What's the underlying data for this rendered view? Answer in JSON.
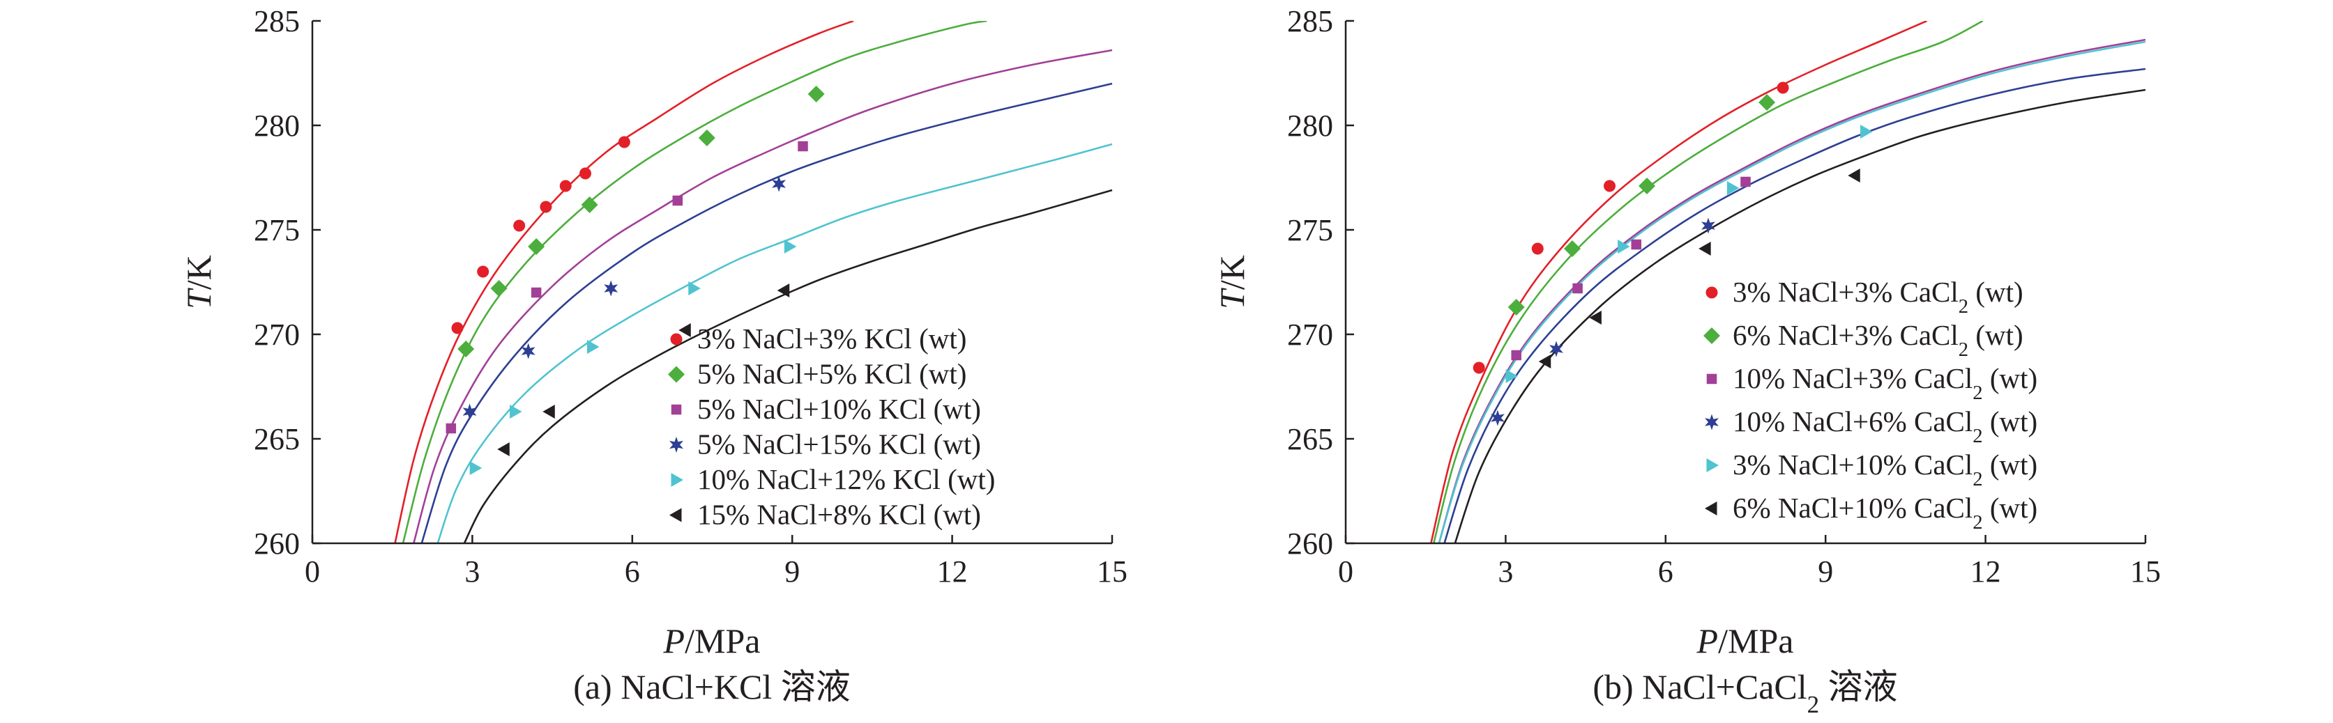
{
  "colors": {
    "red": "#e32028",
    "green": "#4cae3c",
    "purple": "#a23f97",
    "navy": "#2d3f93",
    "cyan": "#4fc3d0",
    "black": "#231f20"
  },
  "chart_data": [
    {
      "type": "scatter",
      "caption": "(a) NaCl+KCl 溶液",
      "xlabel": {
        "italic": "P",
        "rest": "/MPa"
      },
      "ylabel": {
        "italic": "T",
        "rest": "/K"
      },
      "xlim": [
        0,
        15
      ],
      "ylim": [
        260,
        285
      ],
      "xticks": [
        "0",
        "3",
        "6",
        "9",
        "12",
        "15"
      ],
      "yticks": [
        "260",
        "265",
        "270",
        "275",
        "280",
        "285"
      ],
      "legend_position": "bottom-right",
      "series": [
        {
          "name": "3% NaCl+3% KCl (wt)",
          "color_key": "red",
          "marker": "circle",
          "points": [
            [
              2.72,
              270.3
            ],
            [
              3.2,
              273.0
            ],
            [
              3.88,
              275.2
            ],
            [
              4.38,
              276.1
            ],
            [
              4.75,
              277.1
            ],
            [
              5.12,
              277.7
            ],
            [
              5.85,
              279.2
            ]
          ],
          "curve": [
            [
              1.55,
              260
            ],
            [
              1.9,
              264
            ],
            [
              2.3,
              267.2
            ],
            [
              2.8,
              270.2
            ],
            [
              3.5,
              273.2
            ],
            [
              4.5,
              276.3
            ],
            [
              5.5,
              278.7
            ],
            [
              6.5,
              280.4
            ],
            [
              7.5,
              282.0
            ],
            [
              8.5,
              283.3
            ],
            [
              9.5,
              284.4
            ],
            [
              10.15,
              285
            ]
          ]
        },
        {
          "name": "5% NaCl+5% KCl (wt)",
          "color_key": "green",
          "marker": "diamond",
          "points": [
            [
              2.88,
              269.3
            ],
            [
              3.5,
              272.2
            ],
            [
              4.2,
              274.2
            ],
            [
              5.2,
              276.2
            ],
            [
              7.4,
              279.4
            ],
            [
              9.45,
              281.5
            ]
          ],
          "curve": [
            [
              1.7,
              260
            ],
            [
              2.1,
              264
            ],
            [
              2.6,
              267.6
            ],
            [
              3.2,
              270.7
            ],
            [
              4.0,
              273.4
            ],
            [
              5.0,
              275.9
            ],
            [
              6.0,
              277.9
            ],
            [
              7.0,
              279.5
            ],
            [
              8.0,
              280.9
            ],
            [
              9.0,
              282.1
            ],
            [
              10.0,
              283.2
            ],
            [
              11.0,
              284.0
            ],
            [
              12.2,
              284.8
            ],
            [
              12.65,
              285
            ]
          ]
        },
        {
          "name": "5% NaCl+10% KCl (wt)",
          "color_key": "purple",
          "marker": "square",
          "points": [
            [
              2.6,
              265.5
            ],
            [
              4.2,
              272.0
            ],
            [
              6.85,
              276.4
            ],
            [
              9.2,
              279.0
            ]
          ],
          "curve": [
            [
              1.9,
              260
            ],
            [
              2.3,
              263.7
            ],
            [
              2.8,
              266.6
            ],
            [
              3.5,
              269.5
            ],
            [
              4.5,
              272.3
            ],
            [
              5.5,
              274.4
            ],
            [
              6.5,
              276.0
            ],
            [
              7.5,
              277.5
            ],
            [
              8.5,
              278.7
            ],
            [
              9.5,
              279.8
            ],
            [
              10.5,
              280.8
            ],
            [
              12.0,
              282.0
            ],
            [
              13.5,
              282.9
            ],
            [
              15.0,
              283.6
            ]
          ]
        },
        {
          "name": "5% NaCl+15% KCl (wt)",
          "color_key": "navy",
          "marker": "star",
          "points": [
            [
              2.95,
              266.3
            ],
            [
              4.05,
              269.2
            ],
            [
              5.6,
              272.2
            ],
            [
              8.75,
              277.2
            ]
          ],
          "curve": [
            [
              2.05,
              260
            ],
            [
              2.5,
              263.7
            ],
            [
              3.0,
              266.2
            ],
            [
              3.8,
              269.0
            ],
            [
              4.8,
              271.6
            ],
            [
              6.0,
              273.9
            ],
            [
              7.0,
              275.4
            ],
            [
              8.0,
              276.7
            ],
            [
              9.0,
              277.8
            ],
            [
              10.0,
              278.7
            ],
            [
              11.0,
              279.5
            ],
            [
              12.5,
              280.5
            ],
            [
              14.0,
              281.4
            ],
            [
              15.0,
              282.0
            ]
          ]
        },
        {
          "name": "10% NaCl+12% KCl (wt)",
          "color_key": "cyan",
          "marker": "triangle-right",
          "points": [
            [
              3.05,
              263.6
            ],
            [
              3.8,
              266.3
            ],
            [
              5.25,
              269.4
            ],
            [
              7.15,
              272.2
            ],
            [
              8.95,
              274.2
            ]
          ],
          "curve": [
            [
              2.35,
              260
            ],
            [
              2.7,
              262.6
            ],
            [
              3.2,
              264.8
            ],
            [
              4.0,
              267.2
            ],
            [
              5.0,
              269.3
            ],
            [
              6.0,
              270.9
            ],
            [
              7.0,
              272.3
            ],
            [
              8.0,
              273.6
            ],
            [
              9.0,
              274.6
            ],
            [
              10.0,
              275.6
            ],
            [
              11.0,
              276.4
            ],
            [
              12.5,
              277.4
            ],
            [
              14.0,
              278.4
            ],
            [
              15.0,
              279.1
            ]
          ]
        },
        {
          "name": "15% NaCl+8% KCl (wt)",
          "color_key": "black",
          "marker": "triangle-left",
          "points": [
            [
              3.6,
              264.5
            ],
            [
              4.45,
              266.3
            ],
            [
              7.0,
              270.2
            ],
            [
              8.85,
              272.1
            ]
          ],
          "curve": [
            [
              2.85,
              260
            ],
            [
              3.2,
              261.8
            ],
            [
              3.8,
              263.8
            ],
            [
              4.5,
              265.6
            ],
            [
              5.5,
              267.5
            ],
            [
              6.5,
              269.0
            ],
            [
              7.5,
              270.3
            ],
            [
              8.5,
              271.5
            ],
            [
              9.5,
              272.6
            ],
            [
              10.5,
              273.5
            ],
            [
              11.5,
              274.3
            ],
            [
              12.5,
              275.1
            ],
            [
              13.5,
              275.8
            ],
            [
              15.0,
              276.9
            ]
          ]
        }
      ]
    },
    {
      "type": "scatter",
      "caption": "(b) NaCl+CaCl2 溶液",
      "xlabel": {
        "italic": "P",
        "rest": "/MPa"
      },
      "ylabel": {
        "italic": "T",
        "rest": "/K"
      },
      "xlim": [
        0,
        15
      ],
      "ylim": [
        260,
        285
      ],
      "xticks": [
        "0",
        "3",
        "6",
        "9",
        "12",
        "15"
      ],
      "yticks": [
        "260",
        "265",
        "270",
        "275",
        "280",
        "285"
      ],
      "legend_position": "middle-right",
      "series": [
        {
          "name": "3% NaCl+3% CaCl2 (wt)",
          "color_key": "red",
          "marker": "circle",
          "points": [
            [
              2.5,
              268.4
            ],
            [
              3.6,
              274.1
            ],
            [
              4.95,
              277.1
            ],
            [
              8.2,
              281.8
            ]
          ],
          "curve": [
            [
              1.6,
              260
            ],
            [
              2.0,
              264.3
            ],
            [
              2.5,
              267.6
            ],
            [
              3.2,
              271.2
            ],
            [
              4.0,
              274.0
            ],
            [
              5.0,
              276.6
            ],
            [
              6.0,
              278.6
            ],
            [
              7.0,
              280.3
            ],
            [
              8.0,
              281.7
            ],
            [
              9.0,
              282.9
            ],
            [
              10.0,
              284.0
            ],
            [
              10.9,
              285
            ]
          ]
        },
        {
          "name": "6% NaCl+3% CaCl2 (wt)",
          "color_key": "green",
          "marker": "diamond",
          "points": [
            [
              3.2,
              271.3
            ],
            [
              4.25,
              274.1
            ],
            [
              5.65,
              277.1
            ],
            [
              7.9,
              281.1
            ]
          ],
          "curve": [
            [
              1.65,
              260
            ],
            [
              2.05,
              264.0
            ],
            [
              2.6,
              267.6
            ],
            [
              3.3,
              270.8
            ],
            [
              4.2,
              273.7
            ],
            [
              5.2,
              276.1
            ],
            [
              6.2,
              278.0
            ],
            [
              7.2,
              279.6
            ],
            [
              8.2,
              281.0
            ],
            [
              9.2,
              282.1
            ],
            [
              10.2,
              283.1
            ],
            [
              11.2,
              284.0
            ],
            [
              11.95,
              285
            ]
          ]
        },
        {
          "name": "10% NaCl+3% CaCl2 (wt)",
          "color_key": "purple",
          "marker": "square",
          "points": [
            [
              3.2,
              269.0
            ],
            [
              4.35,
              272.2
            ],
            [
              5.45,
              274.3
            ],
            [
              7.5,
              277.3
            ]
          ],
          "curve": [
            [
              1.75,
              260
            ],
            [
              2.2,
              263.9
            ],
            [
              2.8,
              267.2
            ],
            [
              3.5,
              270.0
            ],
            [
              4.5,
              272.8
            ],
            [
              5.5,
              274.9
            ],
            [
              6.5,
              276.6
            ],
            [
              7.5,
              278.0
            ],
            [
              8.5,
              279.3
            ],
            [
              9.5,
              280.4
            ],
            [
              10.5,
              281.3
            ],
            [
              12.0,
              282.5
            ],
            [
              13.5,
              283.4
            ],
            [
              15.0,
              284.1
            ]
          ]
        },
        {
          "name": "10% NaCl+6% CaCl2 (wt)",
          "color_key": "navy",
          "marker": "star",
          "points": [
            [
              2.85,
              266.0
            ],
            [
              3.95,
              269.3
            ],
            [
              6.8,
              275.2
            ]
          ],
          "curve": [
            [
              1.85,
              260
            ],
            [
              2.3,
              263.6
            ],
            [
              2.9,
              266.8
            ],
            [
              3.6,
              269.4
            ],
            [
              4.6,
              272.1
            ],
            [
              5.6,
              274.1
            ],
            [
              6.6,
              275.8
            ],
            [
              7.6,
              277.2
            ],
            [
              8.6,
              278.4
            ],
            [
              9.6,
              279.5
            ],
            [
              10.6,
              280.4
            ],
            [
              12.0,
              281.4
            ],
            [
              13.5,
              282.2
            ],
            [
              15.0,
              282.7
            ]
          ]
        },
        {
          "name": "3% NaCl+10% CaCl2 (wt)",
          "color_key": "cyan",
          "marker": "triangle-right",
          "points": [
            [
              3.1,
              268.0
            ],
            [
              5.2,
              274.2
            ],
            [
              7.25,
              277.0
            ],
            [
              9.75,
              279.7
            ]
          ],
          "curve": [
            [
              1.75,
              260
            ],
            [
              2.2,
              263.8
            ],
            [
              2.8,
              267.1
            ],
            [
              3.5,
              269.9
            ],
            [
              4.5,
              272.7
            ],
            [
              5.5,
              274.8
            ],
            [
              6.5,
              276.5
            ],
            [
              7.5,
              277.9
            ],
            [
              8.5,
              279.2
            ],
            [
              9.5,
              280.3
            ],
            [
              10.5,
              281.2
            ],
            [
              12.0,
              282.4
            ],
            [
              13.5,
              283.3
            ],
            [
              15.0,
              284.0
            ]
          ]
        },
        {
          "name": "6% NaCl+10% CaCl2 (wt)",
          "color_key": "black",
          "marker": "triangle-left",
          "points": [
            [
              3.75,
              268.7
            ],
            [
              4.7,
              270.8
            ],
            [
              6.75,
              274.1
            ],
            [
              9.55,
              277.6
            ]
          ],
          "curve": [
            [
              2.05,
              260
            ],
            [
              2.5,
              263.4
            ],
            [
              3.1,
              266.3
            ],
            [
              3.8,
              268.8
            ],
            [
              4.8,
              271.4
            ],
            [
              5.8,
              273.4
            ],
            [
              6.8,
              275.0
            ],
            [
              7.8,
              276.4
            ],
            [
              8.8,
              277.6
            ],
            [
              9.8,
              278.6
            ],
            [
              10.8,
              279.5
            ],
            [
              12.0,
              280.3
            ],
            [
              13.5,
              281.1
            ],
            [
              15.0,
              281.7
            ]
          ]
        }
      ]
    }
  ]
}
